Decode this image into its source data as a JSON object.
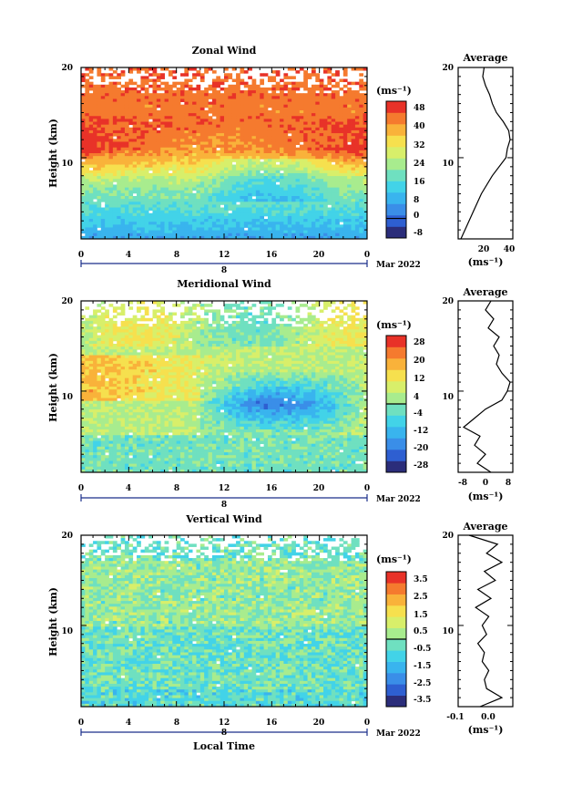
{
  "panels": [
    {
      "title": "Zonal Wind",
      "ylabel": "Height (km)",
      "yticks": [
        "20",
        "10"
      ],
      "xticks": [
        "0",
        "4",
        "8",
        "12",
        "16",
        "20",
        "0"
      ],
      "day_label": "8",
      "date_label": "Mar 2022",
      "unit_label": "(ms⁻¹)",
      "colorbar_ticks": [
        "48",
        "40",
        "32",
        "24",
        "16",
        "8",
        "0",
        "-8"
      ],
      "avg_title": "Average",
      "avg_yticks": [
        "20",
        "10"
      ],
      "avg_xticks": [
        "20",
        "40"
      ],
      "avg_xlabel": "(ms⁻¹)"
    },
    {
      "title": "Meridional Wind",
      "ylabel": "Height (km)",
      "yticks": [
        "20",
        "10"
      ],
      "xticks": [
        "0",
        "4",
        "8",
        "12",
        "16",
        "20",
        "0"
      ],
      "day_label": "8",
      "date_label": "Mar 2022",
      "unit_label": "(ms⁻¹)",
      "colorbar_ticks": [
        "28",
        "20",
        "12",
        "4",
        "-4",
        "-12",
        "-20",
        "-28"
      ],
      "avg_title": "Average",
      "avg_yticks": [
        "20",
        "10"
      ],
      "avg_xticks": [
        "-8",
        "0",
        "8"
      ],
      "avg_xlabel": "(ms⁻¹)"
    },
    {
      "title": "Vertical Wind",
      "ylabel": "Height (km)",
      "yticks": [
        "20",
        "10"
      ],
      "xticks": [
        "0",
        "4",
        "8",
        "12",
        "16",
        "20",
        "0"
      ],
      "day_label": "8",
      "date_label": "Mar 2022",
      "unit_label": "(ms⁻¹)",
      "colorbar_ticks": [
        "3.5",
        "2.5",
        "1.5",
        "0.5",
        "-0.5",
        "-1.5",
        "-2.5",
        "-3.5"
      ],
      "avg_title": "Average",
      "avg_yticks": [
        "20",
        "10"
      ],
      "avg_xticks": [
        "-0.1",
        "0.0"
      ],
      "avg_xlabel": "(ms⁻¹)"
    }
  ],
  "xlabel_bottom": "Local Time",
  "colors": {
    "palette": [
      "#2b2d7a",
      "#2e5fd1",
      "#3a8ee8",
      "#39b4ee",
      "#42d3e8",
      "#6fe0c0",
      "#a8ec8e",
      "#d8ef6a",
      "#f6e04e",
      "#f9b23a",
      "#f57a2e",
      "#e83228"
    ]
  },
  "chart_data": [
    {
      "type": "heatmap",
      "title": "Zonal Wind",
      "xlabel": "",
      "ylabel": "Height (km)",
      "x_range_local_time_h": [
        0,
        24
      ],
      "y_range_km": [
        1,
        20
      ],
      "color_range": [
        -8,
        48
      ],
      "levels": [
        -8,
        0,
        8,
        16,
        24,
        32,
        40,
        48
      ],
      "grid": false,
      "profile_average": {
        "xlabel": "(ms⁻¹)",
        "x_range": [
          5,
          45
        ],
        "height_km": [
          1,
          2,
          4,
          6,
          8,
          10,
          11,
          12,
          13,
          14,
          15,
          16,
          17,
          18,
          19,
          20
        ],
        "speed_ms": [
          7,
          10,
          16,
          22,
          30,
          40,
          41,
          43,
          42,
          38,
          33,
          30,
          28,
          25,
          23,
          24
        ]
      }
    },
    {
      "type": "heatmap",
      "title": "Meridional Wind",
      "xlabel": "",
      "ylabel": "Height (km)",
      "x_range_local_time_h": [
        0,
        24
      ],
      "y_range_km": [
        1,
        20
      ],
      "color_range": [
        -28,
        28
      ],
      "levels": [
        -28,
        -20,
        -12,
        -4,
        4,
        12,
        20,
        28
      ],
      "grid": false,
      "profile_average": {
        "xlabel": "(ms⁻¹)",
        "x_range": [
          -10,
          10
        ],
        "height_km": [
          1,
          2,
          3,
          4,
          5,
          6,
          7,
          8,
          9,
          10,
          11,
          12,
          13,
          14,
          15,
          16,
          17,
          18,
          19,
          20
        ],
        "speed_ms": [
          2,
          -3,
          0,
          -4,
          -2,
          -8,
          -4,
          0,
          6,
          8,
          9,
          6,
          4,
          5,
          3,
          5,
          1,
          3,
          0,
          2
        ]
      }
    },
    {
      "type": "heatmap",
      "title": "Vertical Wind",
      "xlabel": "Local Time",
      "ylabel": "Height (km)",
      "x_range_local_time_h": [
        0,
        24
      ],
      "y_range_km": [
        1,
        20
      ],
      "color_range": [
        -3.5,
        3.5
      ],
      "levels": [
        -3.5,
        -2.5,
        -1.5,
        -0.5,
        0.5,
        1.5,
        2.5,
        3.5
      ],
      "grid": false,
      "profile_average": {
        "xlabel": "(ms⁻¹)",
        "x_range": [
          -0.15,
          0.1
        ],
        "height_km": [
          1,
          2,
          3,
          4,
          5,
          6,
          7,
          8,
          9,
          10,
          11,
          12,
          13,
          14,
          15,
          16,
          17,
          18,
          19,
          20
        ],
        "speed_ms": [
          -0.05,
          0.05,
          -0.02,
          -0.03,
          -0.01,
          -0.04,
          -0.03,
          -0.06,
          -0.02,
          -0.04,
          -0.01,
          -0.07,
          0.0,
          -0.06,
          0.02,
          -0.03,
          0.05,
          -0.02,
          0.03,
          -0.1
        ]
      }
    }
  ]
}
